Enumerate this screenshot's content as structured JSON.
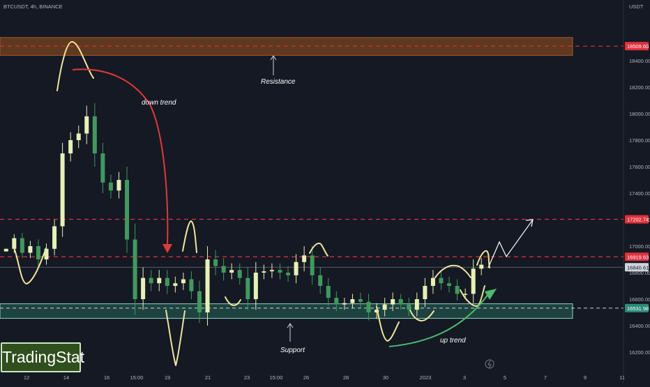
{
  "header": {
    "symbol": "BTCUSDT, 4h, BINANCE",
    "currency": "USDT"
  },
  "branding": {
    "label": "TradingStat"
  },
  "colors": {
    "background": "#151924",
    "bull": "#e7f0b5",
    "bear": "#3f9a5c",
    "resistance_zone": "#6b3f1e",
    "support_zone": "#1f4a45",
    "dashed_level": "#e0313c",
    "down_arrow": "#e0393a",
    "up_arrow": "#4cbb6c",
    "marker": "#f1e59c"
  },
  "annotations": {
    "down_trend": "down trend",
    "up_trend": "up trend",
    "resistance": "Resistance",
    "support": "Support"
  },
  "chart_data": {
    "type": "candlestick",
    "symbol": "BTCUSDT",
    "interval": "4h",
    "exchange": "BINANCE",
    "xlabels": [
      "12",
      "14",
      "16",
      "15:00",
      "19",
      "21",
      "23",
      "15:00",
      "26",
      "28",
      "30",
      "2023",
      "3",
      "5",
      "7",
      "9",
      "11"
    ],
    "yticks": [
      16200,
      16400,
      16600,
      16800,
      17000,
      17200,
      17400,
      17600,
      17800,
      18000,
      18200,
      18400
    ],
    "ylim": [
      16000,
      18700
    ],
    "levels": [
      {
        "value": "18509.60",
        "role": "resistance",
        "style": "dashed"
      },
      {
        "value": "17202.74",
        "style": "dashed"
      },
      {
        "value": "16919.63",
        "style": "dashed"
      },
      {
        "value": "16840.61",
        "role": "last-price"
      },
      {
        "value": "16531.98",
        "role": "support",
        "style": "dashed"
      }
    ],
    "zones": [
      {
        "name": "Resistance",
        "from": 18440,
        "to": 18575
      },
      {
        "name": "Support",
        "from": 16455,
        "to": 16565
      }
    ],
    "price_path": [
      [
        16980,
        0
      ],
      [
        17060,
        3
      ],
      [
        16950,
        4
      ],
      [
        17000,
        4
      ],
      [
        16900,
        5
      ],
      [
        16980,
        4
      ],
      [
        17150,
        5
      ],
      [
        17700,
        8
      ],
      [
        17800,
        6
      ],
      [
        17850,
        6
      ],
      [
        17980,
        8
      ],
      [
        17700,
        10
      ],
      [
        17480,
        8
      ],
      [
        17420,
        6
      ],
      [
        17500,
        6
      ],
      [
        17050,
        10
      ],
      [
        16600,
        12
      ],
      [
        16760,
        8
      ],
      [
        16720,
        6
      ],
      [
        16760,
        6
      ],
      [
        16700,
        6
      ],
      [
        16720,
        5
      ],
      [
        16750,
        5
      ],
      [
        16660,
        6
      ],
      [
        16500,
        8
      ],
      [
        16900,
        10
      ],
      [
        16850,
        7
      ],
      [
        16800,
        6
      ],
      [
        16820,
        5
      ],
      [
        16760,
        5
      ],
      [
        16600,
        8
      ],
      [
        16800,
        8
      ],
      [
        16810,
        5
      ],
      [
        16820,
        5
      ],
      [
        16800,
        5
      ],
      [
        16780,
        5
      ],
      [
        16880,
        6
      ],
      [
        16930,
        7
      ],
      [
        16780,
        7
      ],
      [
        16700,
        6
      ],
      [
        16610,
        6
      ],
      [
        16560,
        5
      ],
      [
        16570,
        4
      ],
      [
        16600,
        4
      ],
      [
        16580,
        5
      ],
      [
        16500,
        6
      ],
      [
        16520,
        5
      ],
      [
        16560,
        5
      ],
      [
        16600,
        5
      ],
      [
        16560,
        4
      ],
      [
        16520,
        5
      ],
      [
        16600,
        5
      ],
      [
        16700,
        6
      ],
      [
        16760,
        6
      ],
      [
        16720,
        5
      ],
      [
        16700,
        5
      ],
      [
        16640,
        5
      ],
      [
        16640,
        4
      ],
      [
        16830,
        7
      ],
      [
        16860,
        5
      ]
    ]
  }
}
